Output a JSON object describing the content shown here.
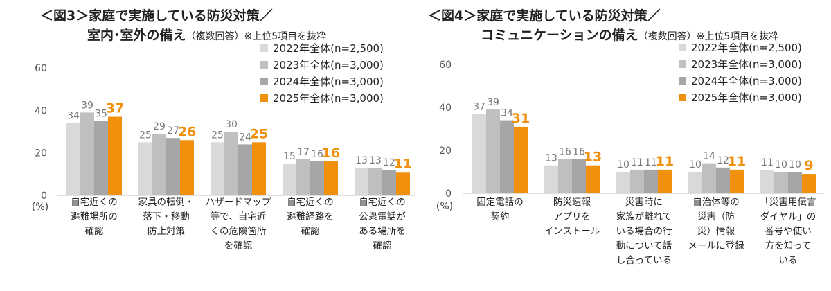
{
  "chart_data": [
    {
      "type": "bar",
      "title_line1": "＜図3＞家庭で実施している防災対策／",
      "title_line2": "室内･室外の備え",
      "title_note": "（複数回答）※上位5項目を抜粋",
      "ylabel": "(%)",
      "ylim": [
        0,
        60
      ],
      "yticks": [
        0,
        20,
        40,
        60
      ],
      "categories": [
        "自宅近くの\n避難場所の\n確認",
        "家具の転倒・\n落下・移動\n防止対策",
        "ハザードマップ\n等で、自宅近\nくの危険箇所\nを確認",
        "自宅近くの\n避難経路を\n確認",
        "自宅近くの\n公衆電話が\nある場所を\n確認"
      ],
      "series": [
        {
          "name": "2022年全体(n=2,500)",
          "color": "#d9d9d9",
          "values": [
            34,
            25,
            25,
            15,
            13
          ]
        },
        {
          "name": "2023年全体(n=3,000)",
          "color": "#bfbfbf",
          "values": [
            39,
            29,
            30,
            17,
            13
          ]
        },
        {
          "name": "2024年全体(n=3,000)",
          "color": "#a6a6a6",
          "values": [
            35,
            27,
            24,
            16,
            12
          ]
        },
        {
          "name": "2025年全体(n=3,000)",
          "color": "#f0900d",
          "values": [
            37,
            26,
            25,
            16,
            11
          ]
        }
      ],
      "legend": "top-right"
    },
    {
      "type": "bar",
      "title_line1": "＜図4＞家庭で実施している防災対策／",
      "title_line2": "コミュニケーションの備え",
      "title_note": "（複数回答）※上位5項目を抜粋",
      "ylabel": "(%)",
      "ylim": [
        0,
        60
      ],
      "yticks": [
        0,
        20,
        40,
        60
      ],
      "categories": [
        "固定電話の\n契約",
        "防災速報\nアプリを\nインストール",
        "災害時に\n家族が離れて\nいる場合の行\n動について話\nし合っている",
        "自治体等の\n災害（防\n災）情報\nメールに登録",
        "「災害用伝言\nダイヤル」の\n番号や使い\n方を知って\nいる"
      ],
      "series": [
        {
          "name": "2022年全体(n=2,500)",
          "color": "#d9d9d9",
          "values": [
            37,
            13,
            10,
            10,
            11
          ]
        },
        {
          "name": "2023年全体(n=3,000)",
          "color": "#bfbfbf",
          "values": [
            39,
            16,
            11,
            14,
            10
          ]
        },
        {
          "name": "2024年全体(n=3,000)",
          "color": "#a6a6a6",
          "values": [
            34,
            16,
            11,
            12,
            10
          ]
        },
        {
          "name": "2025年全体(n=3,000)",
          "color": "#f0900d",
          "values": [
            31,
            13,
            11,
            11,
            9
          ]
        }
      ],
      "legend": "top-right"
    }
  ]
}
